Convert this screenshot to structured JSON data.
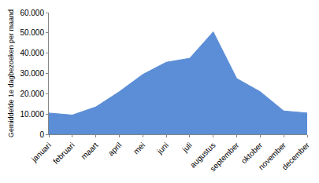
{
  "chart_data": {
    "type": "area",
    "y_label": "Gemiddelde 1e dagbezoeken per maand",
    "categories": [
      "januari",
      "februari",
      "maart",
      "april",
      "mei",
      "juni",
      "juli",
      "augustus",
      "september",
      "oktober",
      "november",
      "december"
    ],
    "values": [
      10500,
      9500,
      13500,
      21000,
      29500,
      35500,
      37500,
      50500,
      27500,
      21000,
      11500,
      10500
    ],
    "color": "#5b8ed6",
    "ylim": [
      0,
      60000
    ],
    "yticks": [
      0,
      {
        "value": 10000,
        "label": "10.000"
      },
      {
        "value": 20000,
        "label": "20.000"
      },
      {
        "value": 30000,
        "label": "30.000"
      },
      {
        "value": 40000,
        "label": "40.000"
      },
      {
        "value": 50000,
        "label": "50.000"
      },
      {
        "value": 60000,
        "label": "60.000"
      }
    ],
    "grid": false
  }
}
